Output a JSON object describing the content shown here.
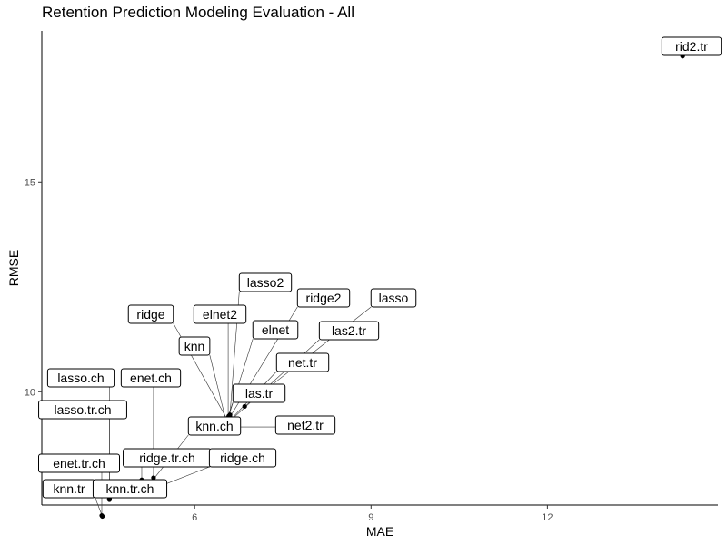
{
  "chart_data": {
    "type": "scatter",
    "title": "Retention Prediction Modeling Evaluation - All",
    "xlabel": "MAE",
    "ylabel": "RMSE",
    "xlim": [
      3.4,
      14.9
    ],
    "ylim": [
      7.3,
      18.6
    ],
    "xticks": [
      6,
      9,
      12
    ],
    "yticks": [
      10,
      15
    ],
    "grid": false,
    "points": [
      {
        "label": "rid2.tr",
        "x": 14.3,
        "y": 18.0
      },
      {
        "label": "lasso2",
        "x": 6.6,
        "y": 9.45
      },
      {
        "label": "ridge2",
        "x": 6.6,
        "y": 9.4
      },
      {
        "label": "lasso",
        "x": 6.85,
        "y": 9.65
      },
      {
        "label": "elnet",
        "x": 6.58,
        "y": 9.42
      },
      {
        "label": "elnet2",
        "x": 6.57,
        "y": 9.38
      },
      {
        "label": "ridge",
        "x": 6.55,
        "y": 9.35
      },
      {
        "label": "knn",
        "x": 6.53,
        "y": 9.33
      },
      {
        "label": "las2.tr",
        "x": 6.52,
        "y": 9.2
      },
      {
        "label": "net.tr",
        "x": 6.5,
        "y": 9.17
      },
      {
        "label": "las.tr",
        "x": 6.5,
        "y": 9.15
      },
      {
        "label": "net2.tr",
        "x": 6.51,
        "y": 9.16
      },
      {
        "label": "lasso.tr.ch",
        "x": 4.55,
        "y": 7.45
      },
      {
        "label": "lasso.ch",
        "x": 4.55,
        "y": 7.43
      },
      {
        "label": "enet.tr.ch",
        "x": 4.42,
        "y": 7.05
      },
      {
        "label": "knn.tr",
        "x": 4.43,
        "y": 7.03
      },
      {
        "label": "enet.ch",
        "x": 5.3,
        "y": 7.95
      },
      {
        "label": "ridge.tr.ch",
        "x": 5.1,
        "y": 7.9
      },
      {
        "label": "knn.ch",
        "x": 5.15,
        "y": 7.65
      },
      {
        "label": "ridge.ch",
        "x": 5.05,
        "y": 7.55
      },
      {
        "label": "knn.tr.ch",
        "x": 5.12,
        "y": 7.62
      }
    ]
  }
}
